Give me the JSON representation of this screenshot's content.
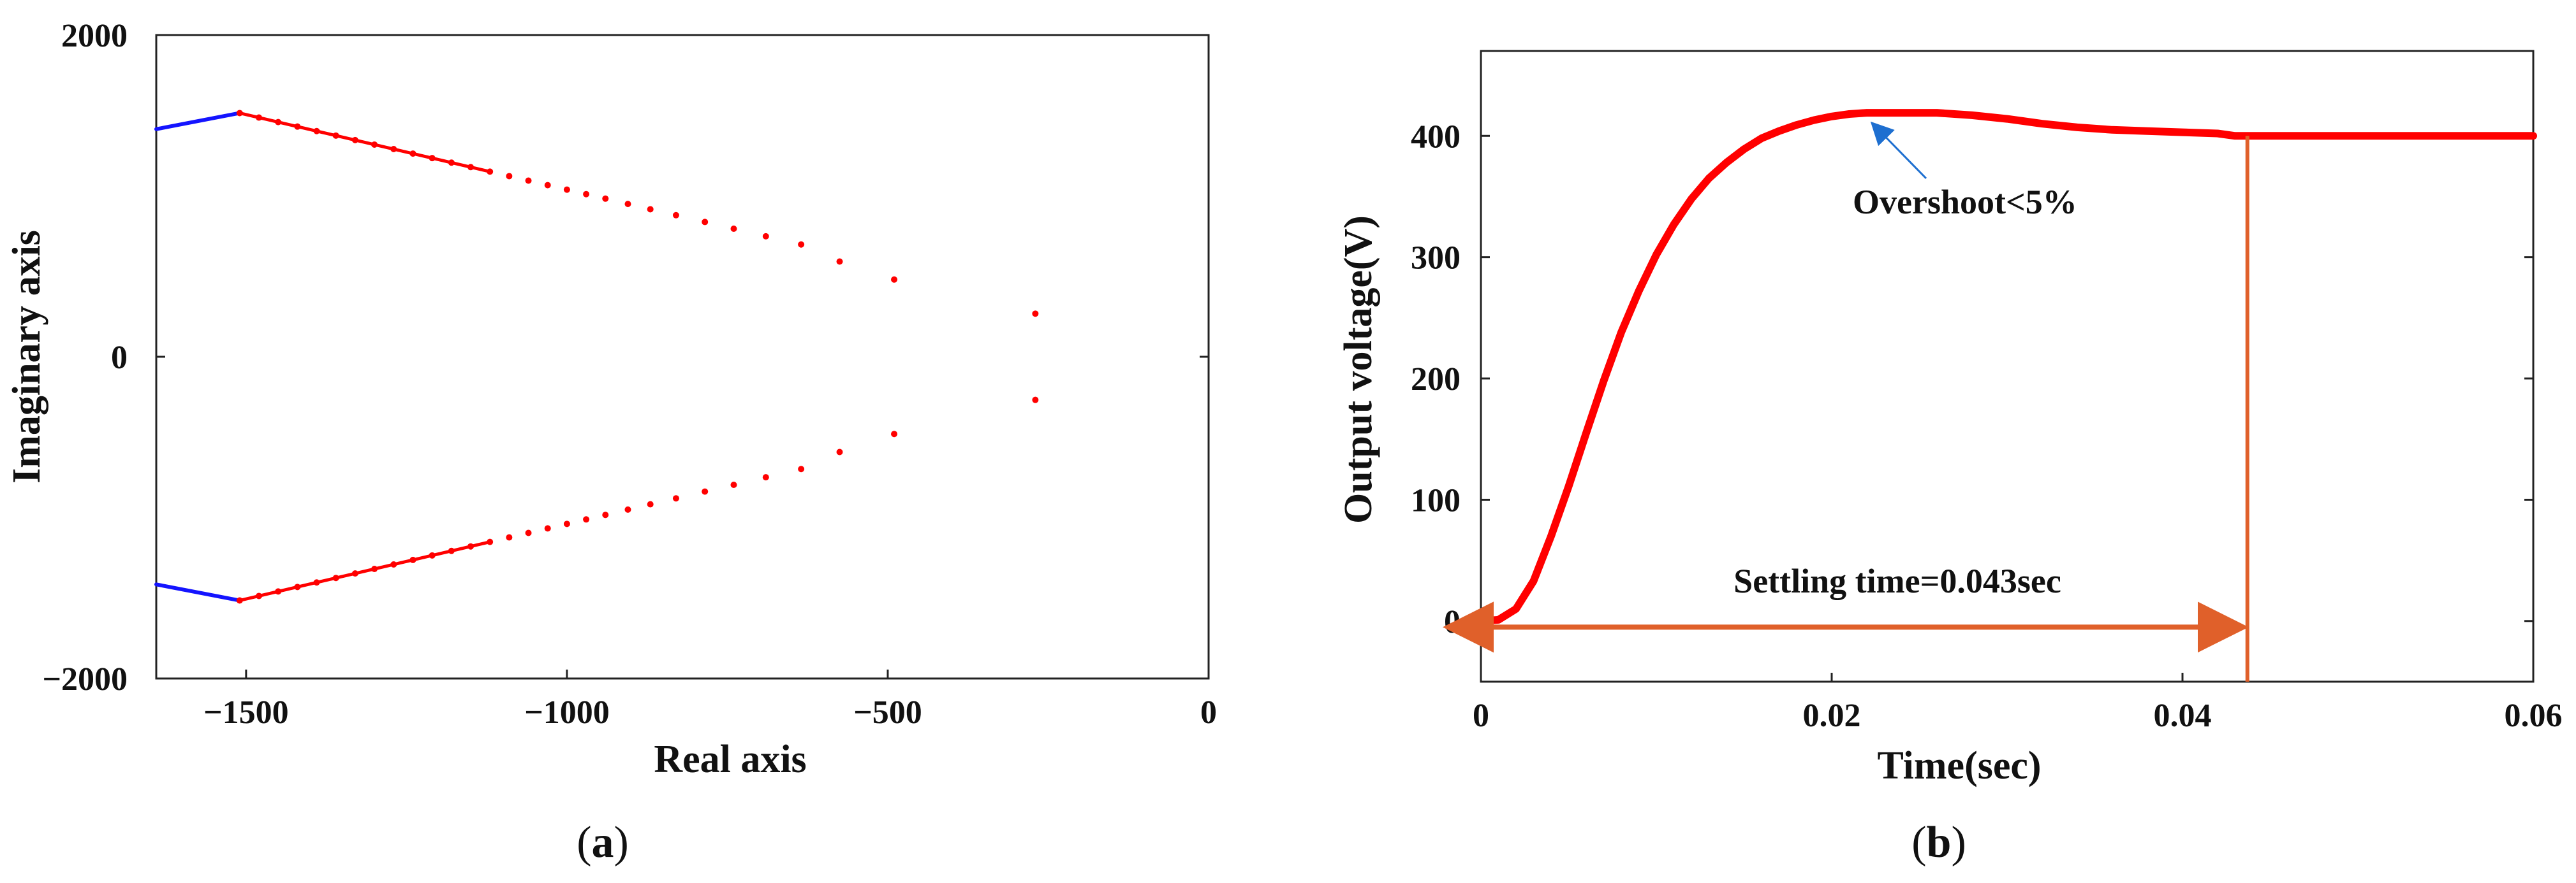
{
  "chart_data": [
    {
      "panel": "(a)",
      "type": "scatter",
      "xlabel": "Real axis",
      "ylabel": "Imaginary axis",
      "xlim": [
        -1640,
        0
      ],
      "ylim": [
        -2000,
        2000
      ],
      "x_ticks": [
        -1500,
        -1000,
        -500,
        0
      ],
      "x_tick_labels": [
        "−1500",
        "−1000",
        "−500",
        "0"
      ],
      "y_ticks": [
        2000,
        0,
        -2000
      ],
      "y_tick_labels": [
        "2000",
        "0",
        "−2000"
      ],
      "grid": false,
      "series": [
        {
          "color": "#1414ff",
          "kind": "line",
          "segments": [
            [
              [
                -1640,
                1415
              ],
              [
                -1510,
                1515
              ]
            ],
            [
              [
                -1640,
                -1415
              ],
              [
                -1510,
                -1515
              ]
            ]
          ]
        },
        {
          "color": "#ff0000",
          "kind": "dots",
          "x": [
            -1510,
            -1480,
            -1450,
            -1420,
            -1390,
            -1360,
            -1330,
            -1300,
            -1270,
            -1240,
            -1210,
            -1180,
            -1150,
            -1120,
            -1090,
            -1060,
            -1030,
            -1000,
            -970,
            -940,
            -905,
            -870,
            -830,
            -785,
            -740,
            -690,
            -635,
            -575,
            -490,
            -270
          ],
          "y": [
            1515,
            1487,
            1459,
            1431,
            1403,
            1375,
            1347,
            1319,
            1291,
            1263,
            1235,
            1207,
            1179,
            1151,
            1123,
            1095,
            1067,
            1039,
            1011,
            983,
            950,
            917,
            880,
            838,
            796,
            749,
            698,
            592,
            480,
            268
          ]
        }
      ]
    },
    {
      "panel": "(b)",
      "type": "line",
      "xlabel": "Time(sec)",
      "ylabel": "Output voltage(V)",
      "xlim": [
        0,
        0.06
      ],
      "ylim": [
        -50,
        470
      ],
      "x_ticks": [
        0,
        0.02,
        0.04,
        0.06
      ],
      "x_tick_labels": [
        "0",
        "0.02",
        "0.04",
        "0.06"
      ],
      "y_ticks": [
        0,
        100,
        200,
        300,
        400
      ],
      "y_tick_labels": [
        "0",
        "100",
        "200",
        "300",
        "400"
      ],
      "grid": false,
      "series": [
        {
          "color": "#ff0000",
          "x": [
            0,
            0.001,
            0.002,
            0.003,
            0.004,
            0.005,
            0.006,
            0.007,
            0.008,
            0.009,
            0.01,
            0.011,
            0.012,
            0.013,
            0.014,
            0.015,
            0.016,
            0.017,
            0.018,
            0.019,
            0.02,
            0.021,
            0.022,
            0.023,
            0.024,
            0.025,
            0.026,
            0.028,
            0.03,
            0.032,
            0.034,
            0.036,
            0.038,
            0.04,
            0.042,
            0.043,
            0.044,
            0.046,
            0.048,
            0.05,
            0.052,
            0.054,
            0.056,
            0.058,
            0.06
          ],
          "y": [
            0,
            1,
            10,
            33,
            70,
            111,
            155,
            198,
            238,
            272,
            302,
            327,
            348,
            365,
            378,
            389,
            398,
            404,
            409,
            413,
            416,
            418,
            419,
            419,
            419,
            419,
            419,
            417,
            414,
            410,
            407,
            405,
            404,
            403,
            402,
            400,
            400,
            400,
            400,
            400,
            400,
            400,
            400,
            400,
            400
          ]
        }
      ],
      "settling_marker_x": 0.0437,
      "annotations": [
        {
          "text": "Overshoot<5%",
          "arrow_to": [
            0.022,
            419
          ]
        },
        {
          "text": "Settling time=0.043sec",
          "arrow_from": [
            0,
            -5
          ],
          "arrow_to": [
            0.0437,
            -5
          ]
        }
      ]
    }
  ],
  "captions": {
    "a_open": "(",
    "a_letter": "a",
    "a_close": ")",
    "b_open": "(",
    "b_letter": "b",
    "b_close": ")"
  },
  "colors": {
    "blue_branch": "#1414ff",
    "red_branch": "#ff0000",
    "marker": "#e0602a"
  }
}
